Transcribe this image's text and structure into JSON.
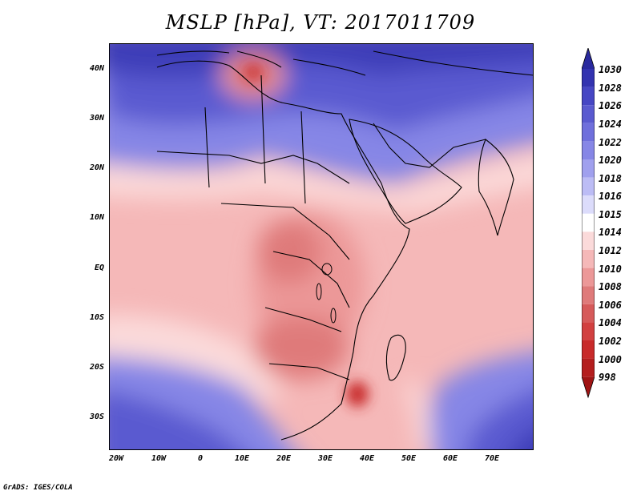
{
  "title": "MSLP [hPa], VT: 2017011709",
  "lat_labels": [
    "40N",
    "30N",
    "20N",
    "10N",
    "EQ",
    "10S",
    "20S",
    "30S"
  ],
  "lon_labels": [
    "20W",
    "10W",
    "0",
    "10E",
    "20E",
    "30E",
    "40E",
    "50E",
    "60E",
    "70E"
  ],
  "legend": {
    "levels": [
      "1030",
      "1028",
      "1026",
      "1024",
      "1022",
      "1020",
      "1018",
      "1016",
      "1015",
      "1014",
      "1012",
      "1010",
      "1008",
      "1006",
      "1004",
      "1002",
      "1000",
      "998"
    ],
    "colors": [
      "#2a2a9e",
      "#3333b0",
      "#4646c4",
      "#5a5ad0",
      "#6f6fdc",
      "#8686e6",
      "#a0a0ee",
      "#bcbcf5",
      "#dcdcfb",
      "#ffffff",
      "#fbdada",
      "#f5b8b8",
      "#ec9898",
      "#df7a7a",
      "#d65a5a",
      "#d24040",
      "#c82a2a",
      "#b41e1e",
      "#a01414"
    ]
  },
  "credit": "GrADS: IGES/COLA"
}
